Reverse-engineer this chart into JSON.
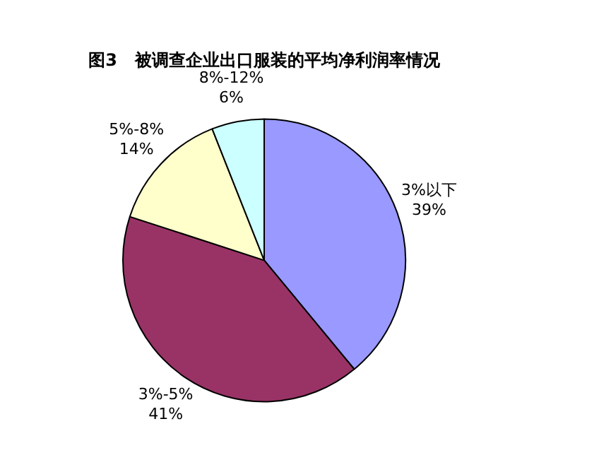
{
  "chart_data": {
    "type": "pie",
    "title": "图3   被调查企业出口服装的平均净利润率情况",
    "categories": [
      "3%以下",
      "3%-5%",
      "5%-8%",
      "8%-12%"
    ],
    "values": [
      39,
      41,
      14,
      6
    ],
    "value_labels": [
      "39%",
      "41%",
      "14%",
      "6%"
    ],
    "colors": [
      "#9999ff",
      "#993366",
      "#ffffcc",
      "#ccffff"
    ],
    "legend": false
  }
}
